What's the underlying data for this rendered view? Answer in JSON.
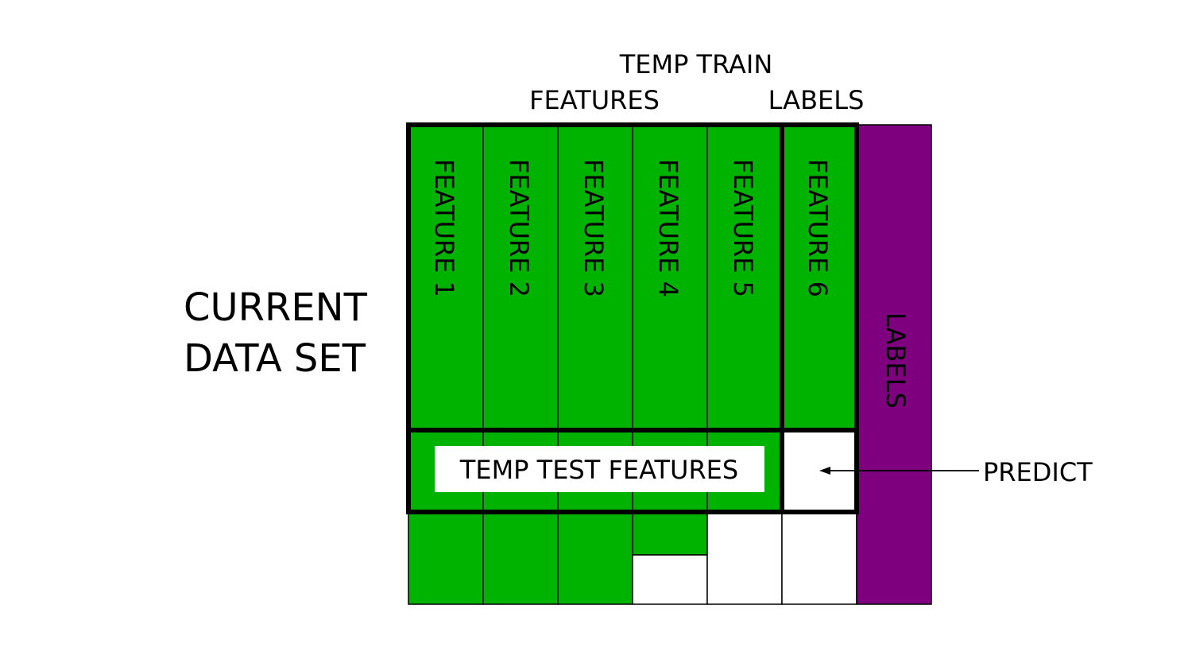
{
  "colors": {
    "feature_fill": "#00b300",
    "label_fill": "#7f007f",
    "empty_fill": "#ffffff",
    "stroke": "#000000"
  },
  "left_title": {
    "line1": "CURRENT",
    "line2": "DATA SET"
  },
  "top_title": {
    "line1": "TEMP TRAIN",
    "features": "FEATURES",
    "labels": "LABELS"
  },
  "columns": [
    {
      "label": "FEATURE 1"
    },
    {
      "label": "FEATURE 2"
    },
    {
      "label": "FEATURE 3"
    },
    {
      "label": "FEATURE 4"
    },
    {
      "label": "FEATURE 5"
    },
    {
      "label": "FEATURE 6"
    }
  ],
  "labels_column": "LABELS",
  "test_features": "TEMP TEST FEATURES",
  "predict": "PREDICT"
}
